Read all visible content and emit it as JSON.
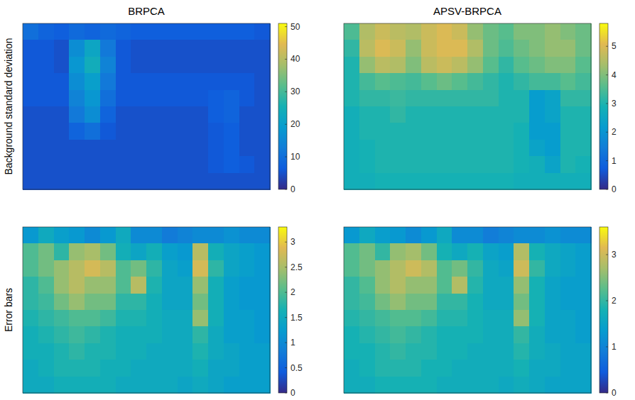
{
  "chart_data": [
    {
      "type": "heatmap",
      "title": "BRPCA",
      "ylabel": "Background standard deviation",
      "tick_labels": false,
      "colorbar_range": [
        0,
        51
      ],
      "colorbar_ticks": [
        0,
        10,
        20,
        30,
        40,
        50
      ],
      "cells": [
        [
          10,
          8,
          7,
          9,
          8,
          9,
          8,
          7,
          7,
          7,
          7,
          7,
          7,
          7,
          7,
          6
        ],
        [
          6,
          6,
          5,
          16,
          22,
          12,
          6,
          5,
          5,
          5,
          5,
          5,
          5,
          5,
          5,
          5
        ],
        [
          6,
          6,
          5,
          18,
          24,
          14,
          6,
          5,
          5,
          5,
          5,
          5,
          5,
          5,
          5,
          5
        ],
        [
          6,
          6,
          6,
          16,
          20,
          12,
          6,
          6,
          6,
          6,
          6,
          6,
          6,
          6,
          6,
          5
        ],
        [
          6,
          6,
          6,
          14,
          18,
          10,
          6,
          6,
          6,
          6,
          6,
          6,
          7,
          8,
          6,
          5
        ],
        [
          5,
          5,
          5,
          12,
          16,
          8,
          5,
          5,
          5,
          5,
          5,
          5,
          7,
          8,
          5,
          5
        ],
        [
          5,
          5,
          5,
          8,
          10,
          6,
          5,
          5,
          5,
          5,
          5,
          5,
          6,
          7,
          5,
          5
        ],
        [
          5,
          5,
          5,
          5,
          5,
          5,
          5,
          5,
          5,
          5,
          5,
          5,
          6,
          7,
          5,
          5
        ],
        [
          5,
          5,
          5,
          5,
          5,
          5,
          5,
          5,
          5,
          5,
          5,
          5,
          6,
          7,
          6,
          5
        ],
        [
          5,
          5,
          5,
          5,
          5,
          5,
          5,
          5,
          5,
          5,
          5,
          5,
          5,
          5,
          5,
          5
        ]
      ]
    },
    {
      "type": "heatmap",
      "title": "APSV-BRPCA",
      "tick_labels": false,
      "colorbar_range": [
        0,
        5.8
      ],
      "colorbar_ticks": [
        0,
        1,
        2,
        3,
        4,
        5
      ],
      "cells": [
        [
          3.5,
          4.5,
          4.8,
          4.6,
          4.5,
          4.8,
          5,
          4.8,
          4.2,
          3.8,
          3.6,
          4,
          4,
          4.2,
          4,
          3.8
        ],
        [
          3.2,
          4.6,
          5,
          4.8,
          4.2,
          4.8,
          5,
          5,
          4.5,
          3.8,
          3.5,
          3.8,
          4,
          4.2,
          4.2,
          3.8
        ],
        [
          3,
          4.2,
          4.6,
          4.5,
          4,
          4.6,
          4.8,
          4.6,
          4.2,
          3.6,
          3.2,
          3.6,
          3.8,
          4,
          4,
          3.6
        ],
        [
          3,
          3.4,
          3.6,
          3.5,
          3.4,
          3.6,
          3.8,
          3.6,
          3.4,
          3.2,
          3,
          3.2,
          3.4,
          3.4,
          3.6,
          3.4
        ],
        [
          3,
          3.2,
          3.2,
          3.3,
          3.2,
          3.2,
          3.2,
          3.2,
          3.2,
          3.2,
          3,
          3,
          2.2,
          2.4,
          3.2,
          3.2
        ],
        [
          2.8,
          3,
          3,
          3.2,
          3,
          3,
          3,
          3,
          3,
          3,
          3,
          3,
          2.2,
          2.4,
          3,
          3
        ],
        [
          2.8,
          3,
          3,
          3,
          3,
          3,
          3,
          3,
          3,
          3,
          3,
          2.9,
          2.2,
          2.2,
          3,
          3
        ],
        [
          2.8,
          2.9,
          3,
          3,
          3,
          3,
          3,
          3,
          3,
          3,
          3,
          2.9,
          2.4,
          2.2,
          3,
          3
        ],
        [
          2.8,
          2.9,
          3,
          3,
          3,
          3,
          3,
          3,
          3,
          3,
          3,
          2.9,
          2.8,
          2.4,
          3,
          2.9
        ],
        [
          2.8,
          2.8,
          2.9,
          2.9,
          2.9,
          2.9,
          2.9,
          2.9,
          2.9,
          2.9,
          2.9,
          2.8,
          2.8,
          2.8,
          2.8,
          2.8
        ]
      ]
    },
    {
      "type": "heatmap",
      "ylabel": "Error bars",
      "tick_labels": false,
      "colorbar_range": [
        0,
        3.3
      ],
      "colorbar_ticks": [
        0,
        0.5,
        1,
        1.5,
        2,
        2.5,
        3
      ],
      "cells": [
        [
          1.2,
          1.5,
          1.3,
          1.2,
          1,
          1.2,
          1.5,
          1,
          1,
          0.8,
          0.9,
          1,
          1,
          1.1,
          1,
          1
        ],
        [
          2,
          2.2,
          1.8,
          2.4,
          2.5,
          2.2,
          1.6,
          1.4,
          1.6,
          1.3,
          1.2,
          2.6,
          1.6,
          1.4,
          1.3,
          1.2
        ],
        [
          2,
          2.2,
          2.4,
          2.6,
          2.8,
          2.6,
          2,
          2.2,
          1.8,
          1.4,
          1.3,
          2.8,
          1.8,
          1.4,
          1.3,
          1.2
        ],
        [
          1.8,
          2,
          2.4,
          2.6,
          2.4,
          2.4,
          2,
          2.6,
          1.7,
          1.4,
          1.4,
          2.4,
          1.6,
          1.3,
          1.2,
          1.2
        ],
        [
          1.8,
          1.9,
          2.2,
          2.4,
          2.2,
          2.2,
          1.8,
          1.8,
          1.6,
          1.4,
          1.4,
          2.2,
          1.6,
          1.3,
          1.2,
          1.2
        ],
        [
          1.7,
          1.8,
          1.9,
          2,
          2,
          1.9,
          1.7,
          1.7,
          1.6,
          1.5,
          1.5,
          2.4,
          1.6,
          1.3,
          1.3,
          1.2
        ],
        [
          1.6,
          1.7,
          1.8,
          1.9,
          1.8,
          1.7,
          1.6,
          1.6,
          1.6,
          1.5,
          1.5,
          1.8,
          1.5,
          1.3,
          1.3,
          1.2
        ],
        [
          1.6,
          1.6,
          1.7,
          1.8,
          1.7,
          1.7,
          1.6,
          1.6,
          1.5,
          1.5,
          1.5,
          1.7,
          1.5,
          1.4,
          1.3,
          1.3
        ],
        [
          1.5,
          1.6,
          1.7,
          1.7,
          1.7,
          1.6,
          1.6,
          1.5,
          1.5,
          1.5,
          1.5,
          1.6,
          1.4,
          1.4,
          1.3,
          1.3
        ],
        [
          1.5,
          1.5,
          1.6,
          1.6,
          1.6,
          1.6,
          1.5,
          1.5,
          1.5,
          1.5,
          1.4,
          1.5,
          1.4,
          1.3,
          1.3,
          1.3
        ]
      ]
    },
    {
      "type": "heatmap",
      "tick_labels": false,
      "colorbar_range": [
        0,
        3.6
      ],
      "colorbar_ticks": [
        0,
        1,
        2,
        3
      ],
      "cells": [
        [
          1.3,
          1.6,
          1.4,
          1.3,
          1.1,
          1.3,
          1.6,
          1.1,
          1.1,
          0.9,
          1,
          1.1,
          1.1,
          1.2,
          1.1,
          1.1
        ],
        [
          2.2,
          2.4,
          2,
          2.6,
          2.7,
          2.4,
          1.8,
          1.6,
          1.8,
          1.5,
          1.4,
          2.8,
          1.8,
          1.6,
          1.5,
          1.4
        ],
        [
          2.2,
          2.4,
          2.6,
          2.8,
          3,
          2.8,
          2.2,
          2.4,
          2,
          1.6,
          1.5,
          3,
          2,
          1.6,
          1.5,
          1.4
        ],
        [
          2,
          2.2,
          2.6,
          2.8,
          2.6,
          2.6,
          2.2,
          2.8,
          1.9,
          1.6,
          1.6,
          2.6,
          1.8,
          1.5,
          1.4,
          1.4
        ],
        [
          2,
          2.1,
          2.4,
          2.6,
          2.4,
          2.4,
          2,
          2,
          1.8,
          1.6,
          1.6,
          2.4,
          1.8,
          1.5,
          1.4,
          1.4
        ],
        [
          1.9,
          2,
          2.1,
          2.2,
          2.2,
          2.1,
          1.9,
          1.9,
          1.8,
          1.7,
          1.7,
          2.6,
          1.8,
          1.5,
          1.5,
          1.4
        ],
        [
          1.8,
          1.9,
          2,
          2.1,
          2,
          1.9,
          1.8,
          1.8,
          1.8,
          1.7,
          1.7,
          2,
          1.7,
          1.5,
          1.5,
          1.4
        ],
        [
          1.8,
          1.8,
          1.9,
          2,
          1.9,
          1.9,
          1.8,
          1.8,
          1.7,
          1.7,
          1.7,
          1.9,
          1.7,
          1.6,
          1.5,
          1.5
        ],
        [
          1.7,
          1.8,
          1.9,
          1.9,
          1.9,
          1.8,
          1.8,
          1.7,
          1.7,
          1.7,
          1.7,
          1.8,
          1.6,
          1.6,
          1.5,
          1.5
        ],
        [
          1.7,
          1.7,
          1.8,
          1.8,
          1.8,
          1.8,
          1.7,
          1.7,
          1.7,
          1.7,
          1.6,
          1.7,
          1.6,
          1.5,
          1.5,
          1.5
        ]
      ]
    }
  ]
}
